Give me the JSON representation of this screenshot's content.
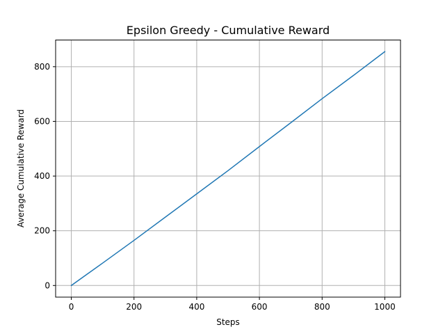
{
  "chart_data": {
    "type": "line",
    "title": "Epsilon Greedy - Cumulative Reward",
    "xlabel": "Steps",
    "ylabel": "Average Cumulative Reward",
    "xlim": [
      -50,
      1050
    ],
    "ylim": [
      -42.5,
      897.5
    ],
    "xticks": [
      0,
      200,
      400,
      600,
      800,
      1000
    ],
    "yticks": [
      0,
      200,
      400,
      600,
      800
    ],
    "grid": true,
    "series": [
      {
        "color": "#1f77b4",
        "x": [
          0,
          100,
          200,
          300,
          400,
          500,
          600,
          700,
          800,
          900,
          1000
        ],
        "y": [
          0,
          82,
          165,
          250,
          335,
          420,
          508,
          595,
          683,
          768,
          855
        ]
      }
    ]
  }
}
